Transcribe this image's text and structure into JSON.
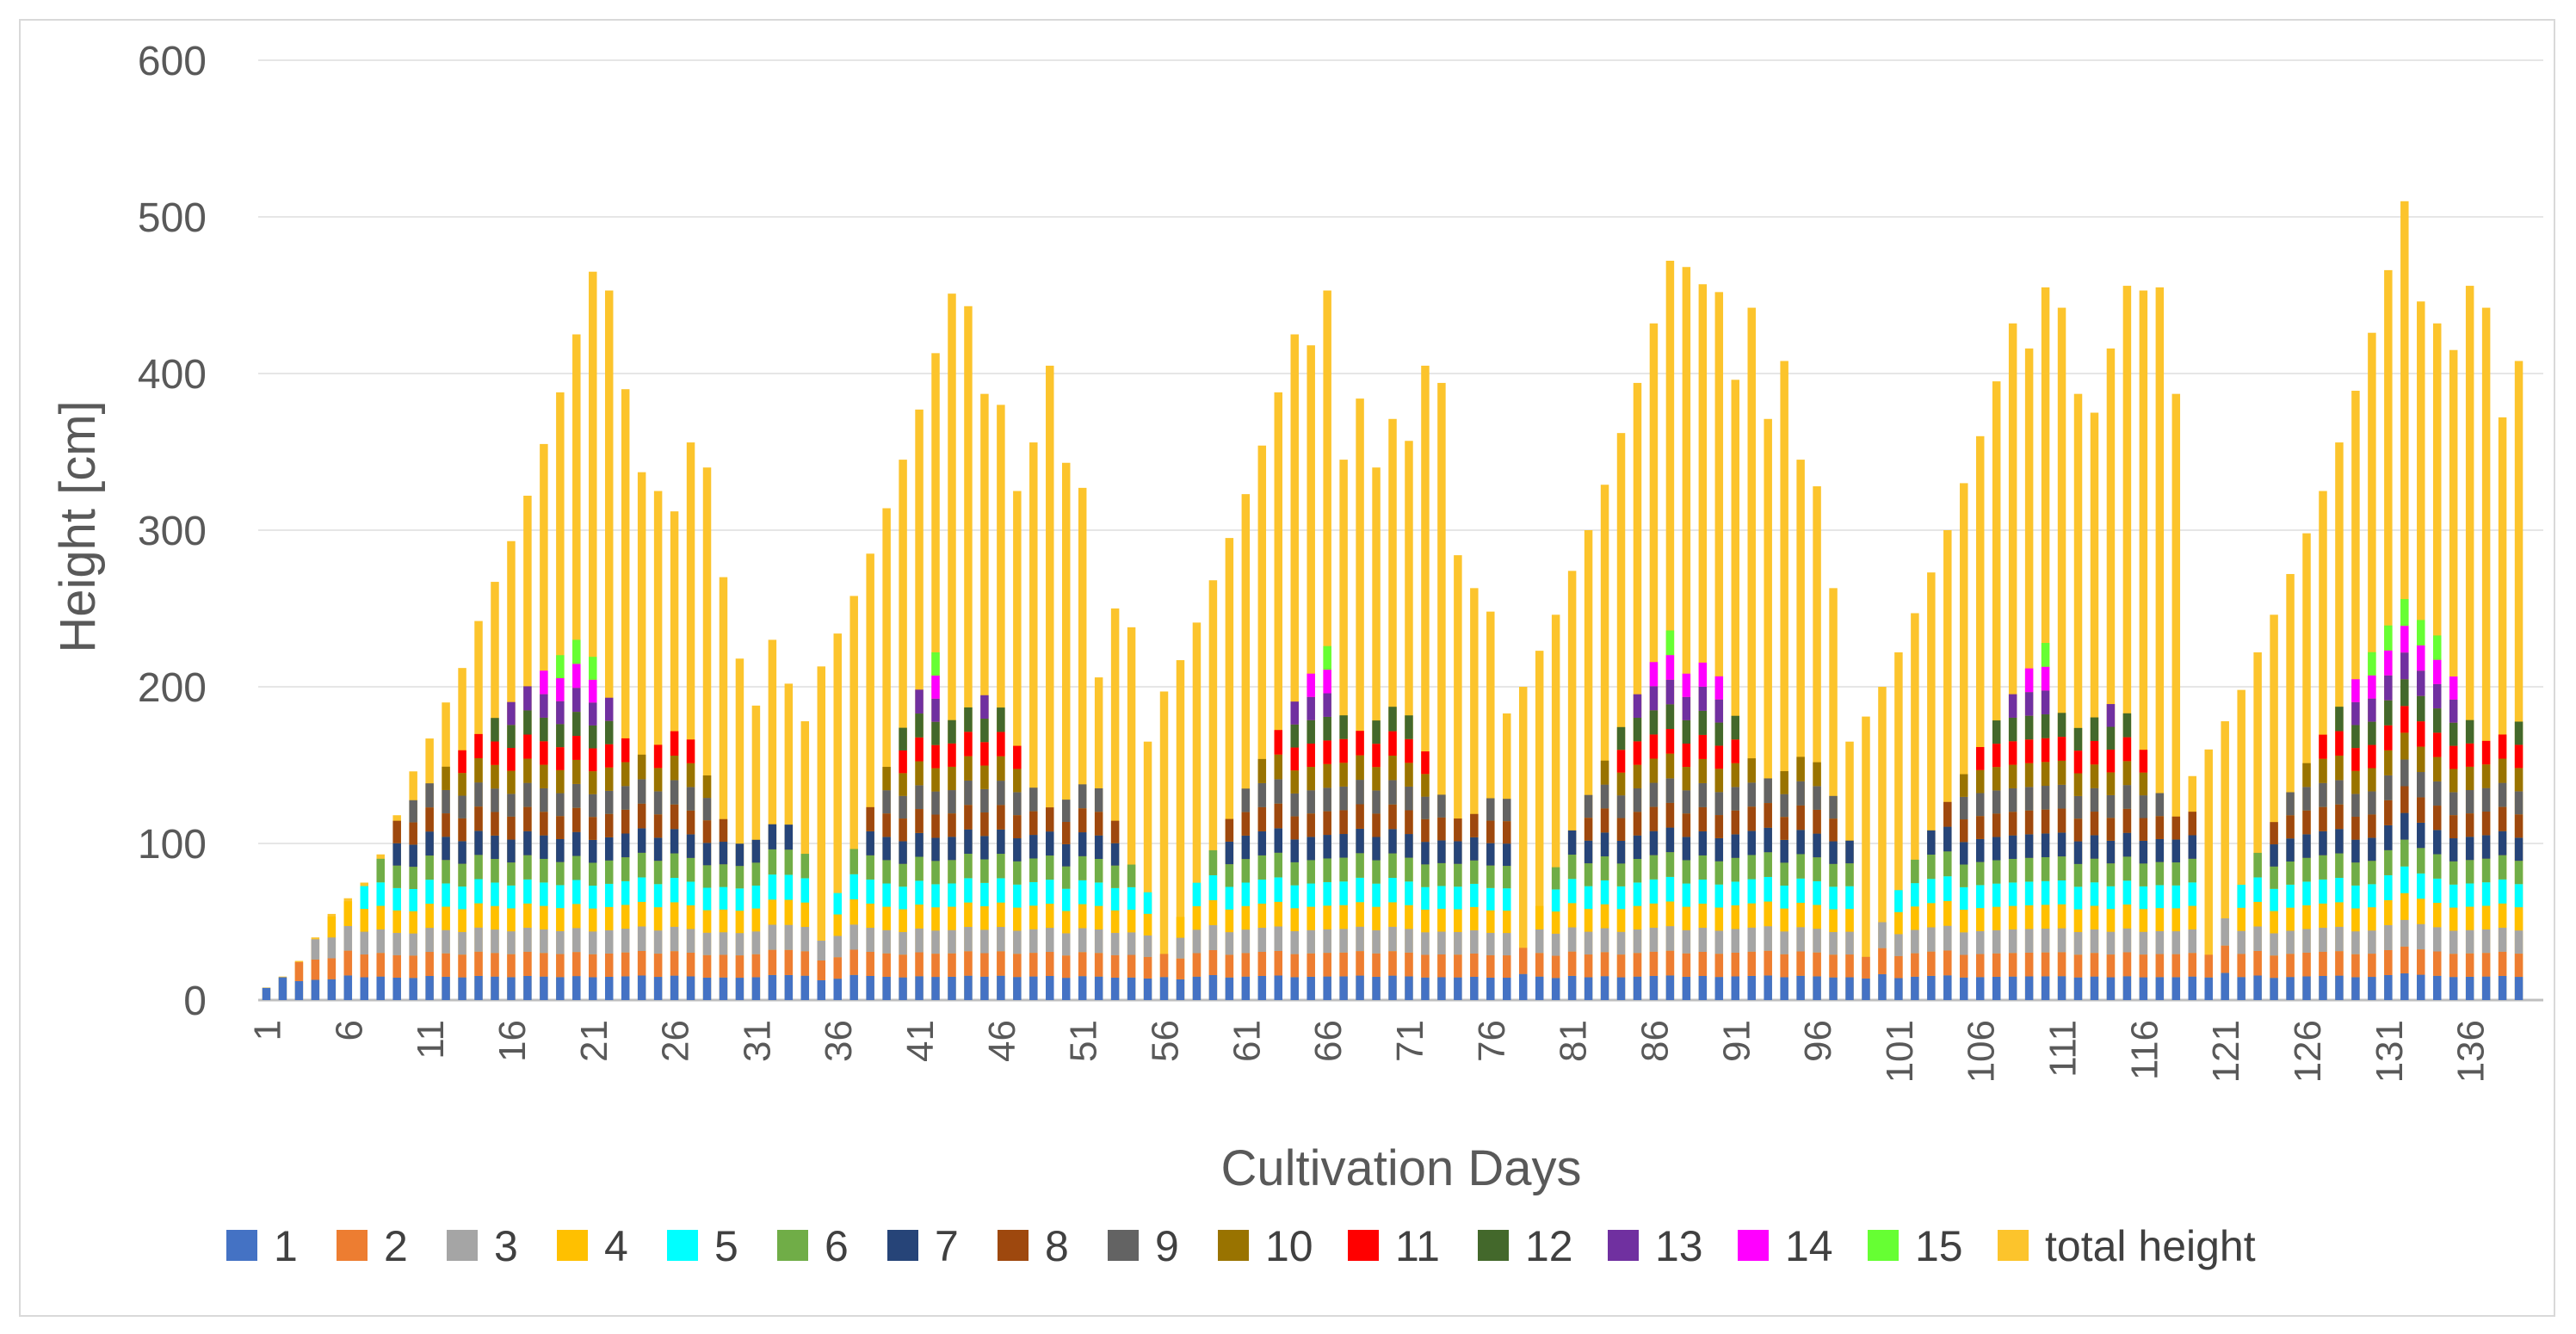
{
  "chart_data": {
    "type": "bar",
    "stacked": true,
    "overlay_series": "total height",
    "title": "",
    "xlabel": "Cultivation Days",
    "ylabel": "Height [cm]",
    "ylim": [
      0,
      600
    ],
    "yticks": [
      0,
      100,
      200,
      300,
      400,
      500,
      600
    ],
    "x_tick_labels": [
      "1",
      "6",
      "11",
      "16",
      "21",
      "26",
      "31",
      "36",
      "41",
      "46",
      "51",
      "56",
      "61",
      "66",
      "71",
      "76",
      "81",
      "86",
      "91",
      "96",
      "101",
      "106",
      "111",
      "116",
      "121",
      "126",
      "131",
      "136"
    ],
    "grid": true,
    "legend_position": "bottom",
    "day_count": 140,
    "stack_layers": [
      "1",
      "2",
      "3",
      "4",
      "5",
      "6",
      "7",
      "8",
      "9",
      "10",
      "11",
      "12",
      "13",
      "14",
      "15"
    ],
    "series_colors": {
      "1": "#4472c4",
      "2": "#ed7d31",
      "3": "#a5a5a5",
      "4": "#ffc000",
      "5": "#00ffff",
      "6": "#70ad47",
      "7": "#264478",
      "8": "#9e480e",
      "9": "#636363",
      "10": "#997300",
      "11": "#ff0000",
      "12": "#43682b",
      "13": "#7030a0",
      "14": "#ff00ff",
      "15": "#66ff33",
      "total height": "#fcc42c"
    },
    "legend": [
      "1",
      "2",
      "3",
      "4",
      "5",
      "6",
      "7",
      "8",
      "9",
      "10",
      "11",
      "12",
      "13",
      "14",
      "15",
      "total height"
    ],
    "cycles": [
      {
        "start_day": 1,
        "stack_peak": 230,
        "stack_peak_day": 20,
        "total_anchors": [
          [
            1,
            8
          ],
          [
            2,
            15
          ],
          [
            3,
            25
          ],
          [
            4,
            40
          ],
          [
            5,
            55
          ],
          [
            6,
            65
          ],
          [
            7,
            75
          ],
          [
            8,
            93
          ],
          [
            9,
            118
          ],
          [
            10,
            146
          ],
          [
            11,
            167
          ],
          [
            12,
            190
          ],
          [
            13,
            212
          ],
          [
            14,
            242
          ],
          [
            15,
            267
          ],
          [
            16,
            293
          ],
          [
            17,
            322
          ],
          [
            18,
            355
          ],
          [
            19,
            388
          ],
          [
            20,
            425
          ],
          [
            21,
            465
          ],
          [
            22,
            453
          ],
          [
            23,
            390
          ],
          [
            24,
            337
          ],
          [
            25,
            325
          ],
          [
            26,
            312
          ],
          [
            27,
            356
          ],
          [
            28,
            340
          ],
          [
            29,
            270
          ],
          [
            30,
            218
          ],
          [
            31,
            188
          ],
          [
            32,
            230
          ],
          [
            33,
            202
          ],
          [
            34,
            178
          ]
        ]
      },
      {
        "start_day": 35,
        "stack_peak": 222,
        "stack_peak_day": 42,
        "total_anchors": [
          [
            35,
            213
          ],
          [
            36,
            234
          ],
          [
            37,
            258
          ],
          [
            38,
            285
          ],
          [
            39,
            314
          ],
          [
            40,
            345
          ],
          [
            41,
            377
          ],
          [
            42,
            413
          ],
          [
            43,
            451
          ],
          [
            44,
            443
          ],
          [
            45,
            387
          ],
          [
            46,
            380
          ],
          [
            47,
            325
          ],
          [
            48,
            356
          ],
          [
            49,
            405
          ],
          [
            50,
            343
          ],
          [
            51,
            327
          ],
          [
            52,
            206
          ],
          [
            53,
            250
          ],
          [
            54,
            238
          ],
          [
            55,
            165
          ]
        ]
      },
      {
        "start_day": 56,
        "stack_peak": 226,
        "stack_peak_day": 66,
        "total_anchors": [
          [
            56,
            197
          ],
          [
            57,
            217
          ],
          [
            58,
            241
          ],
          [
            59,
            268
          ],
          [
            60,
            295
          ],
          [
            61,
            323
          ],
          [
            62,
            354
          ],
          [
            63,
            388
          ],
          [
            64,
            425
          ],
          [
            65,
            418
          ],
          [
            66,
            453
          ],
          [
            67,
            345
          ],
          [
            68,
            384
          ],
          [
            69,
            340
          ],
          [
            70,
            371
          ],
          [
            71,
            357
          ],
          [
            72,
            405
          ],
          [
            73,
            394
          ],
          [
            74,
            284
          ],
          [
            75,
            263
          ],
          [
            76,
            248
          ],
          [
            77,
            183
          ]
        ]
      },
      {
        "start_day": 78,
        "stack_peak": 236,
        "stack_peak_day": 87,
        "total_anchors": [
          [
            78,
            200
          ],
          [
            79,
            223
          ],
          [
            80,
            246
          ],
          [
            81,
            274
          ],
          [
            82,
            300
          ],
          [
            83,
            329
          ],
          [
            84,
            362
          ],
          [
            85,
            394
          ],
          [
            86,
            432
          ],
          [
            87,
            472
          ],
          [
            88,
            468
          ],
          [
            89,
            457
          ],
          [
            90,
            452
          ],
          [
            91,
            396
          ],
          [
            92,
            442
          ],
          [
            93,
            371
          ],
          [
            94,
            408
          ],
          [
            95,
            345
          ],
          [
            96,
            328
          ],
          [
            97,
            263
          ],
          [
            98,
            165
          ]
        ]
      },
      {
        "start_day": 99,
        "stack_peak": 228,
        "stack_peak_day": 110,
        "total_anchors": [
          [
            99,
            181
          ],
          [
            100,
            200
          ],
          [
            101,
            222
          ],
          [
            102,
            247
          ],
          [
            103,
            273
          ],
          [
            104,
            300
          ],
          [
            105,
            330
          ],
          [
            106,
            360
          ],
          [
            107,
            395
          ],
          [
            108,
            432
          ],
          [
            109,
            416
          ],
          [
            110,
            455
          ],
          [
            111,
            442
          ],
          [
            112,
            387
          ],
          [
            113,
            375
          ],
          [
            114,
            416
          ],
          [
            115,
            456
          ],
          [
            116,
            453
          ],
          [
            117,
            455
          ],
          [
            118,
            387
          ],
          [
            119,
            143
          ]
        ]
      },
      {
        "start_day": 120,
        "stack_peak": 256,
        "stack_peak_day": 132,
        "total_anchors": [
          [
            120,
            160
          ],
          [
            121,
            178
          ],
          [
            122,
            198
          ],
          [
            123,
            222
          ],
          [
            124,
            246
          ],
          [
            125,
            272
          ],
          [
            126,
            298
          ],
          [
            127,
            325
          ],
          [
            128,
            356
          ],
          [
            129,
            389
          ],
          [
            130,
            426
          ],
          [
            131,
            466
          ],
          [
            132,
            510
          ],
          [
            133,
            446
          ],
          [
            134,
            432
          ],
          [
            135,
            415
          ],
          [
            136,
            456
          ],
          [
            137,
            442
          ],
          [
            138,
            372
          ],
          [
            139,
            408
          ]
        ]
      }
    ]
  }
}
